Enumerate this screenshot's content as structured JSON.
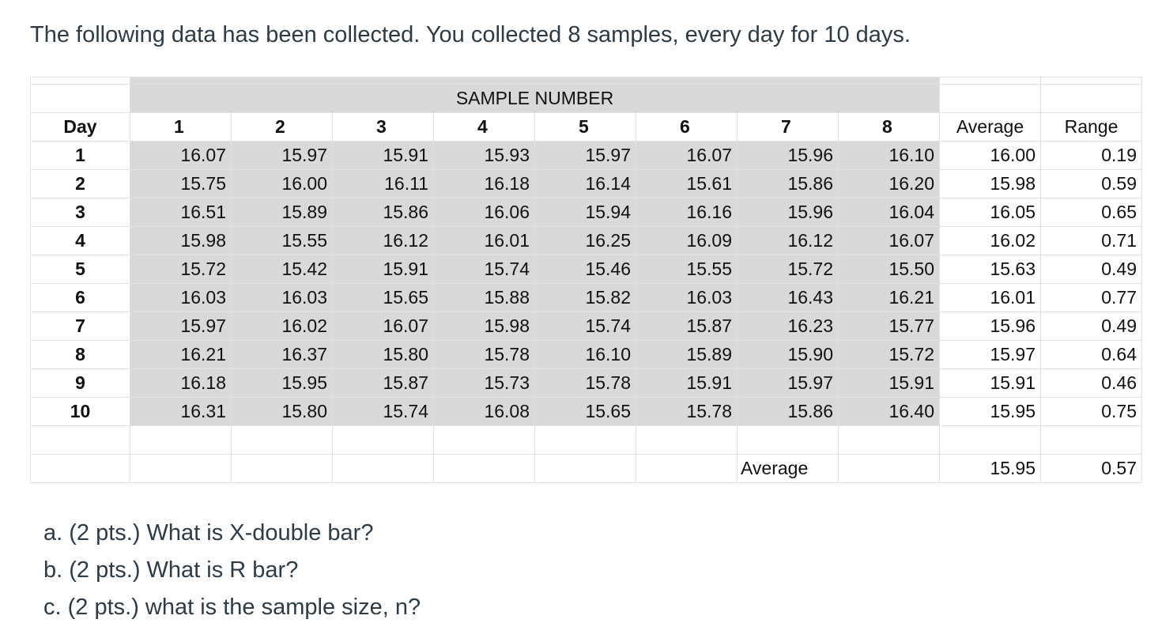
{
  "intro": "The following data has been collected. You collected 8 samples, every day for 10 days.",
  "table": {
    "title": "SAMPLE NUMBER",
    "day_header": "Day",
    "sample_headers": [
      "1",
      "2",
      "3",
      "4",
      "5",
      "6",
      "7",
      "8"
    ],
    "average_header": "Average",
    "range_header": "Range",
    "rows": [
      {
        "day": "1",
        "values": [
          "16.07",
          "15.97",
          "15.91",
          "15.93",
          "15.97",
          "16.07",
          "15.96",
          "16.10"
        ],
        "average": "16.00",
        "range": "0.19"
      },
      {
        "day": "2",
        "values": [
          "15.75",
          "16.00",
          "16.11",
          "16.18",
          "16.14",
          "15.61",
          "15.86",
          "16.20"
        ],
        "average": "15.98",
        "range": "0.59"
      },
      {
        "day": "3",
        "values": [
          "16.51",
          "15.89",
          "15.86",
          "16.06",
          "15.94",
          "16.16",
          "15.96",
          "16.04"
        ],
        "average": "16.05",
        "range": "0.65"
      },
      {
        "day": "4",
        "values": [
          "15.98",
          "15.55",
          "16.12",
          "16.01",
          "16.25",
          "16.09",
          "16.12",
          "16.07"
        ],
        "average": "16.02",
        "range": "0.71"
      },
      {
        "day": "5",
        "values": [
          "15.72",
          "15.42",
          "15.91",
          "15.74",
          "15.46",
          "15.55",
          "15.72",
          "15.50"
        ],
        "average": "15.63",
        "range": "0.49"
      },
      {
        "day": "6",
        "values": [
          "16.03",
          "16.03",
          "15.65",
          "15.88",
          "15.82",
          "16.03",
          "16.43",
          "16.21"
        ],
        "average": "16.01",
        "range": "0.77"
      },
      {
        "day": "7",
        "values": [
          "15.97",
          "16.02",
          "16.07",
          "15.98",
          "15.74",
          "15.87",
          "16.23",
          "15.77"
        ],
        "average": "15.96",
        "range": "0.49"
      },
      {
        "day": "8",
        "values": [
          "16.21",
          "16.37",
          "15.80",
          "15.78",
          "16.10",
          "15.89",
          "15.90",
          "15.72"
        ],
        "average": "15.97",
        "range": "0.64"
      },
      {
        "day": "9",
        "values": [
          "16.18",
          "15.95",
          "15.87",
          "15.73",
          "15.78",
          "15.91",
          "15.97",
          "15.91"
        ],
        "average": "15.91",
        "range": "0.46"
      },
      {
        "day": "10",
        "values": [
          "16.31",
          "15.80",
          "15.74",
          "16.08",
          "15.65",
          "15.78",
          "15.86",
          "16.40"
        ],
        "average": "15.95",
        "range": "0.75"
      }
    ],
    "summary": {
      "label": "Average",
      "average": "15.95",
      "range": "0.57"
    }
  },
  "questions": [
    "a. (2 pts.) What is X-double bar?",
    "b. (2 pts.) What is R bar?",
    "c. (2 pts.)  what is the sample size, n?"
  ],
  "colors": {
    "shade": "#d9d9d9",
    "text": "#2d3b45",
    "grid": "#e2e2e2"
  }
}
